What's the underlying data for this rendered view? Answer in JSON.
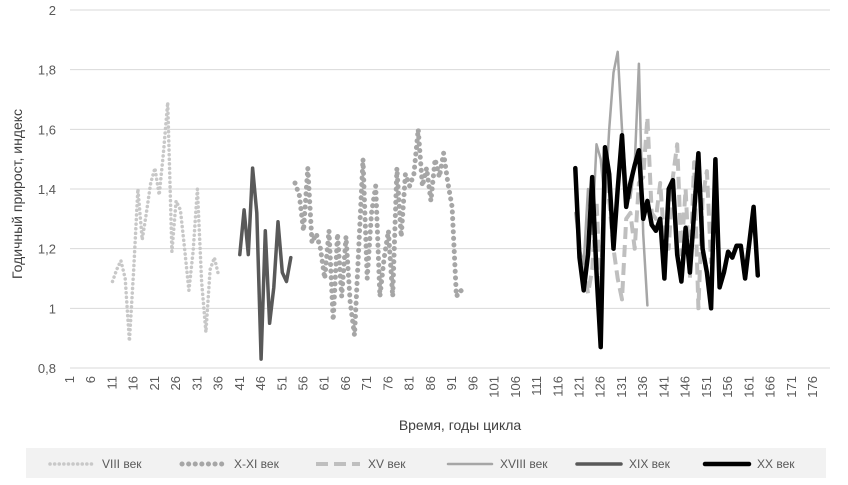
{
  "chart_data": {
    "type": "line",
    "xlabel": "Время, годы цикла",
    "ylabel": "Годичный прирост, индекс",
    "xlim": [
      1,
      180
    ],
    "ylim": [
      0.8,
      2
    ],
    "yticks": [
      "0,8",
      "1",
      "1,2",
      "1,4",
      "1,6",
      "1,8",
      "2"
    ],
    "xticks": [
      "1",
      "6",
      "11",
      "16",
      "21",
      "26",
      "31",
      "36",
      "41",
      "46",
      "51",
      "56",
      "61",
      "66",
      "71",
      "76",
      "81",
      "86",
      "91",
      "96",
      "101",
      "106",
      "111",
      "116",
      "121",
      "126",
      "131",
      "136",
      "141",
      "146",
      "151",
      "156",
      "161",
      "166",
      "171",
      "176"
    ],
    "grid": "horizontal",
    "legend_position": "bottom",
    "series": [
      {
        "name": "VIII век",
        "style": "dotted-fine",
        "color": "#c8c8c8",
        "x": [
          11,
          12,
          13,
          14,
          15,
          16,
          17,
          18,
          19,
          20,
          21,
          22,
          23,
          24,
          25,
          26,
          27,
          28,
          29,
          30,
          31,
          32,
          33,
          34,
          35,
          36
        ],
        "y": [
          1.09,
          1.13,
          1.16,
          1.1,
          0.89,
          1.13,
          1.4,
          1.23,
          1.32,
          1.42,
          1.47,
          1.38,
          1.52,
          1.69,
          1.19,
          1.36,
          1.33,
          1.2,
          1.06,
          1.19,
          1.4,
          1.09,
          0.92,
          1.13,
          1.17,
          1.11
        ]
      },
      {
        "name": "X-XI век",
        "style": "dotted-bold",
        "color": "#a6a6a6",
        "x": [
          54,
          55,
          56,
          57,
          58,
          59,
          60,
          61,
          62,
          63,
          64,
          65,
          66,
          67,
          68,
          69,
          70,
          71,
          72,
          73,
          74,
          75,
          76,
          77,
          78,
          79,
          80,
          81,
          82,
          83,
          84,
          85,
          86,
          87,
          88,
          89,
          90,
          91,
          92,
          93,
          94
        ],
        "y": [
          1.42,
          1.38,
          1.26,
          1.47,
          1.22,
          1.25,
          1.2,
          1.1,
          1.26,
          0.96,
          1.25,
          1.04,
          1.24,
          1.02,
          0.91,
          1.2,
          1.5,
          1.1,
          1.32,
          1.41,
          1.04,
          1.17,
          1.26,
          1.04,
          1.47,
          1.24,
          1.45,
          1.41,
          1.45,
          1.6,
          1.41,
          1.47,
          1.36,
          1.5,
          1.44,
          1.52,
          1.42,
          1.34,
          1.04,
          1.06,
          1.05
        ]
      },
      {
        "name": "XV век",
        "style": "dashed",
        "color": "#bfbfbf",
        "x": [
          122,
          123,
          124,
          125,
          126,
          127,
          128,
          129,
          130,
          131,
          132,
          133,
          134,
          135,
          136,
          137,
          138,
          139,
          140,
          141,
          142,
          143,
          144,
          145,
          146,
          147,
          148,
          149,
          150,
          151,
          152
        ],
        "y": [
          1.15,
          1.05,
          1.13,
          1.36,
          1.05,
          1.48,
          1.36,
          1.2,
          1.1,
          1.03,
          1.3,
          1.32,
          1.2,
          1.42,
          1.44,
          1.64,
          1.32,
          1.3,
          1.42,
          1.22,
          1.2,
          1.44,
          1.55,
          1.18,
          1.4,
          1.1,
          1.49,
          1.0,
          1.37,
          1.46,
          1.15
        ]
      },
      {
        "name": "XVIII век",
        "style": "solid-thin",
        "color": "#a6a6a6",
        "x": [
          120,
          121,
          122,
          123,
          124,
          125,
          126,
          127,
          128,
          129,
          130,
          131,
          132,
          133,
          134,
          135,
          136,
          137
        ],
        "y": [
          1.32,
          1.2,
          1.15,
          1.4,
          1.25,
          1.55,
          1.5,
          1.35,
          1.6,
          1.79,
          1.86,
          1.6,
          1.42,
          1.37,
          1.48,
          1.82,
          1.25,
          1.01
        ]
      },
      {
        "name": "XIX век",
        "style": "solid",
        "color": "#595959",
        "x": [
          41,
          42,
          43,
          44,
          45,
          46,
          47,
          48,
          49,
          50,
          51,
          52,
          53,
          54
        ],
        "y": [
          1.18,
          1.33,
          1.18,
          1.47,
          1.32,
          0.83,
          1.26,
          0.95,
          1.07,
          1.29,
          1.12,
          1.09,
          1.17,
          null
        ]
      },
      {
        "name": "XX век",
        "style": "solid-bold",
        "color": "#000000",
        "x": [
          120,
          121,
          122,
          123,
          124,
          125,
          126,
          127,
          128,
          129,
          130,
          131,
          132,
          133,
          134,
          135,
          136,
          137,
          138,
          139,
          140,
          141,
          142,
          143,
          144,
          145,
          146,
          147,
          148,
          149,
          150,
          151,
          152,
          153,
          154,
          155,
          156,
          157,
          158,
          159,
          160,
          161,
          162,
          163,
          164
        ],
        "y": [
          1.47,
          1.17,
          1.06,
          1.18,
          1.44,
          1.12,
          0.87,
          1.54,
          1.45,
          1.2,
          1.4,
          1.58,
          1.34,
          1.42,
          1.48,
          1.53,
          1.3,
          1.36,
          1.28,
          1.26,
          1.3,
          1.1,
          1.4,
          1.43,
          1.18,
          1.09,
          1.27,
          1.12,
          1.32,
          1.52,
          1.2,
          1.12,
          1.0,
          1.5,
          1.07,
          1.12,
          1.19,
          1.17,
          1.21,
          1.21,
          1.1,
          1.22,
          1.34,
          1.11,
          null
        ]
      }
    ]
  }
}
